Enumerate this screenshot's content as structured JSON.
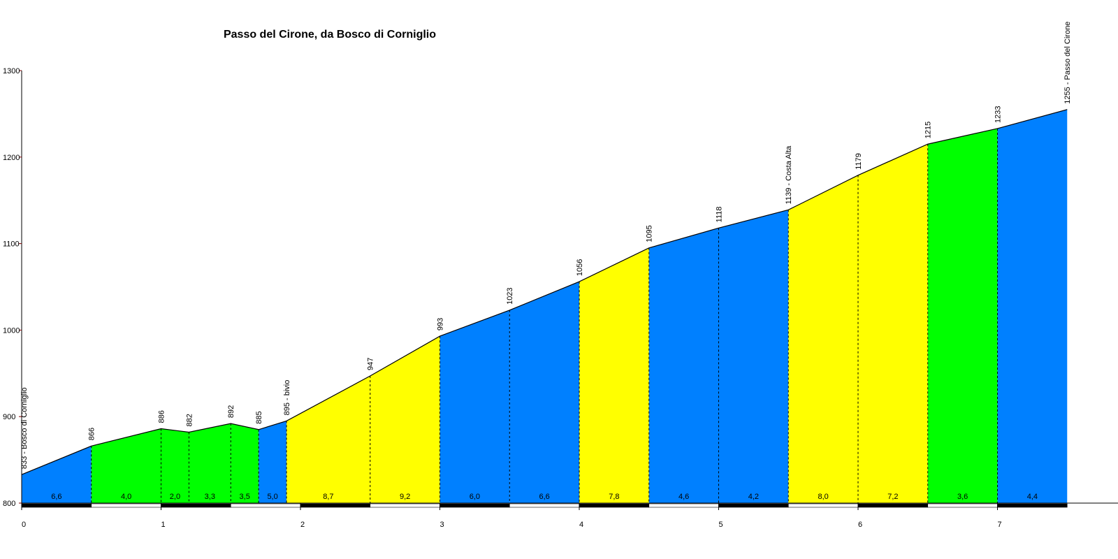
{
  "chart_data": {
    "type": "area",
    "title": "Passo del Cirone, da Bosco di Corniglio",
    "xlabel": "",
    "ylabel": "",
    "xlim": [
      0,
      7.5
    ],
    "ylim": [
      800,
      1300
    ],
    "x_ticks": [
      "0",
      "1",
      "2",
      "3",
      "4",
      "5",
      "6",
      "7"
    ],
    "y_ticks": [
      "800",
      "900",
      "1000",
      "1100",
      "1200",
      "1300"
    ],
    "points": [
      {
        "x": 0.0,
        "y": 833,
        "label": "833 - Bosco di Corniglio"
      },
      {
        "x": 0.5,
        "y": 866,
        "label": "866"
      },
      {
        "x": 1.0,
        "y": 886,
        "label": "886"
      },
      {
        "x": 1.2,
        "y": 882,
        "label": "882"
      },
      {
        "x": 1.5,
        "y": 892,
        "label": "892"
      },
      {
        "x": 1.7,
        "y": 885,
        "label": "885"
      },
      {
        "x": 1.9,
        "y": 895,
        "label": "895 - bivio"
      },
      {
        "x": 2.5,
        "y": 947,
        "label": "947"
      },
      {
        "x": 3.0,
        "y": 993,
        "label": "993"
      },
      {
        "x": 3.5,
        "y": 1023,
        "label": "1023"
      },
      {
        "x": 4.0,
        "y": 1056,
        "label": "1056"
      },
      {
        "x": 4.5,
        "y": 1095,
        "label": "1095"
      },
      {
        "x": 5.0,
        "y": 1118,
        "label": "1118"
      },
      {
        "x": 5.5,
        "y": 1139,
        "label": "1139 - Costa Alta"
      },
      {
        "x": 6.0,
        "y": 1179,
        "label": "1179"
      },
      {
        "x": 6.5,
        "y": 1215,
        "label": "1215"
      },
      {
        "x": 7.0,
        "y": 1233,
        "label": "1233"
      },
      {
        "x": 7.5,
        "y": 1255,
        "label": "1255 - Passo del Cirone"
      }
    ],
    "segments": [
      {
        "grade": "6,6",
        "color": "#0080ff"
      },
      {
        "grade": "4,0",
        "color": "#00ff00"
      },
      {
        "grade": "2,0",
        "color": "#00ff00"
      },
      {
        "grade": "3,3",
        "color": "#00ff00"
      },
      {
        "grade": "3,5",
        "color": "#00ff00"
      },
      {
        "grade": "5,0",
        "color": "#0080ff"
      },
      {
        "grade": "8,7",
        "color": "#ffff00"
      },
      {
        "grade": "9,2",
        "color": "#ffff00"
      },
      {
        "grade": "6,0",
        "color": "#0080ff"
      },
      {
        "grade": "6,6",
        "color": "#0080ff"
      },
      {
        "grade": "7,8",
        "color": "#ffff00"
      },
      {
        "grade": "4,6",
        "color": "#0080ff"
      },
      {
        "grade": "4,2",
        "color": "#0080ff"
      },
      {
        "grade": "8,0",
        "color": "#ffff00"
      },
      {
        "grade": "7,2",
        "color": "#ffff00"
      },
      {
        "grade": "3,6",
        "color": "#00ff00"
      },
      {
        "grade": "4,4",
        "color": "#0080ff"
      }
    ]
  }
}
